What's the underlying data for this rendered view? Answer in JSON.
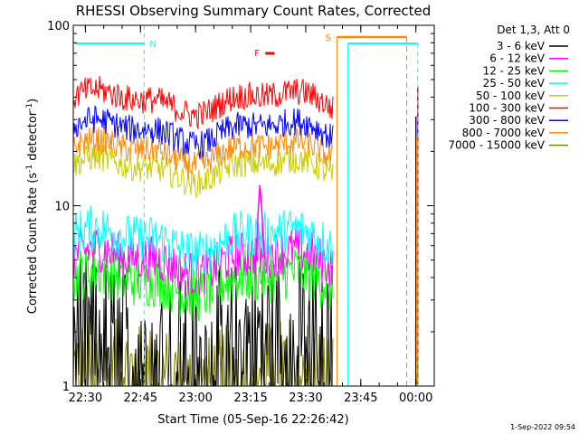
{
  "chart_data": {
    "type": "line",
    "title": "RHESSI Observing Summary Count Rates, Corrected",
    "xlabel": "Start Time (05-Sep-16 22:26:42)",
    "ylabel_main": "Corrected Count Rate (s",
    "ylabel_sup1": "-1",
    "ylabel_mid": " detector",
    "ylabel_sup2": "-1",
    "ylabel_end": ")",
    "yscale": "log",
    "ylim": [
      1,
      100
    ],
    "xlim": [
      "22:26:42",
      "00:05:00"
    ],
    "yticks": [
      "1",
      "10",
      "100"
    ],
    "xticks": [
      "22:30",
      "22:45",
      "23:00",
      "23:15",
      "23:30",
      "23:45",
      "00:00"
    ],
    "legend_title": "Det 1,3, Att 0",
    "legend_placement": "right",
    "series": [
      {
        "name": "3 - 6 keV",
        "color": "#000000",
        "level": 1.9
      },
      {
        "name": "6 - 12 keV",
        "color": "#ff00ff",
        "level": 5.0
      },
      {
        "name": "12 - 25 keV",
        "color": "#00ff00",
        "level": 3.8
      },
      {
        "name": "25 - 50 keV",
        "color": "#00ffff",
        "level": 6.5
      },
      {
        "name": "50 - 100 keV",
        "color": "#cccc00",
        "level": 16
      },
      {
        "name": "100 - 300 keV",
        "color": "#ff0000",
        "level": 38
      },
      {
        "name": "300 - 800 keV",
        "color": "#0000ff",
        "level": 26
      },
      {
        "name": "800 - 7000 keV",
        "color": "#ff8800",
        "level": 20
      },
      {
        "name": "7000 - 15000 keV",
        "color": "#808000",
        "level": 1.2
      }
    ],
    "annotations": [
      {
        "label": "N",
        "color": "#00ffff"
      },
      {
        "label": "F",
        "color": "#ff0000"
      },
      {
        "label": "S",
        "color": "#ff8800"
      }
    ],
    "footer": "1-Sep-2022 09:54"
  }
}
